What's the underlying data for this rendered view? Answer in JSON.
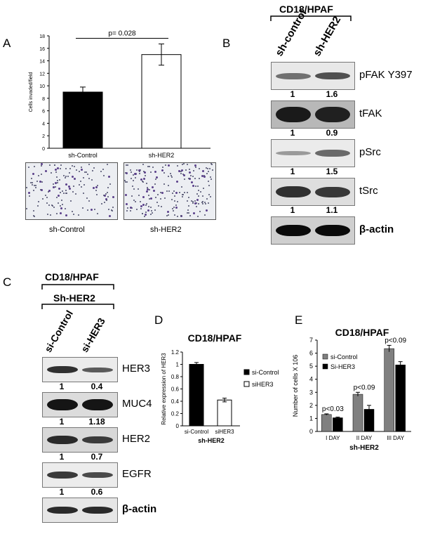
{
  "panels": {
    "A": {
      "label": "A",
      "pvalue": "p= 0.028",
      "chart_data": {
        "type": "bar",
        "categories": [
          "sh-Control",
          "sh-HER2"
        ],
        "values": [
          9.0,
          15.0
        ],
        "errors": [
          0.8,
          1.7
        ],
        "ylabel": "Cells invaded/field",
        "ylim": [
          0,
          18
        ],
        "yticks": [
          0,
          2,
          4,
          6,
          8,
          10,
          12,
          14,
          16,
          18
        ],
        "colors": [
          "#000000",
          "#ffffff"
        ]
      },
      "micro_labels": [
        "sh-Control",
        "sh-HER2"
      ]
    },
    "B": {
      "label": "B",
      "cell_line": "CD18/HPAF",
      "lanes": [
        "sh-control",
        "sh-HER2"
      ],
      "blots": [
        {
          "name": "pFAK Y397",
          "values": [
            "1",
            "1.6"
          ]
        },
        {
          "name": "tFAK",
          "values": [
            "1",
            "0.9"
          ]
        },
        {
          "name": "pSrc",
          "values": [
            "1",
            "1.5"
          ]
        },
        {
          "name": "tSrc",
          "values": [
            "1",
            "1.1"
          ]
        },
        {
          "name": "β-actin",
          "values": []
        }
      ]
    },
    "C": {
      "label": "C",
      "cell_line": "CD18/HPAF",
      "construct": "Sh-HER2",
      "lanes": [
        "si-Control",
        "si-HER3"
      ],
      "blots": [
        {
          "name": "HER3",
          "values": [
            "1",
            "0.4"
          ]
        },
        {
          "name": "MUC4",
          "values": [
            "1",
            "1.18"
          ]
        },
        {
          "name": "HER2",
          "values": [
            "1",
            "0.7"
          ]
        },
        {
          "name": "EGFR",
          "values": [
            "1",
            "0.6"
          ]
        },
        {
          "name": "β-actin",
          "values": []
        }
      ]
    },
    "D": {
      "label": "D",
      "chart_data": {
        "type": "bar",
        "title": "CD18/HPAF",
        "categories": [
          "si-Control",
          "siHER3"
        ],
        "values": [
          1.0,
          0.42
        ],
        "errors": [
          0.03,
          0.03
        ],
        "ylabel": "Relative  expression of HER3",
        "xlabel": "sh-HER2",
        "ylim": [
          0,
          1.2
        ],
        "yticks": [
          "0",
          "0.2",
          "0.4",
          "0.6",
          "0.8",
          "1",
          "1.2"
        ],
        "legend": [
          "si-Control",
          "siHER3"
        ],
        "legend_position": "right",
        "colors": [
          "#000000",
          "#ffffff"
        ]
      }
    },
    "E": {
      "label": "E",
      "chart_data": {
        "type": "bar",
        "title": "CD18/HPAF",
        "categories": [
          "I DAY",
          "II DAY",
          "III DAY"
        ],
        "series": [
          {
            "name": "si-Control",
            "values": [
              1.3,
              2.85,
              6.35
            ],
            "errors": [
              0.05,
              0.15,
              0.25
            ],
            "color": "#808080"
          },
          {
            "name": "Si-HER3",
            "values": [
              1.05,
              1.7,
              5.1
            ],
            "errors": [
              0.05,
              0.3,
              0.25
            ],
            "color": "#000000"
          }
        ],
        "annotations": [
          "p<0.03",
          "p<0.09",
          "p<0.09"
        ],
        "ylabel": "Number of cells X 106",
        "xlabel": "sh-HER2",
        "ylim": [
          0,
          7
        ],
        "yticks": [
          0,
          1,
          2,
          3,
          4,
          5,
          6,
          7
        ],
        "legend_position": "top-left"
      }
    }
  }
}
